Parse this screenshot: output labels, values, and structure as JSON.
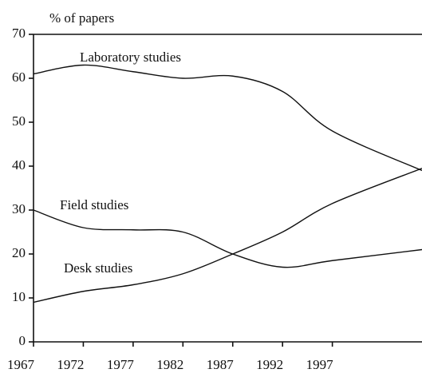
{
  "chart_data": {
    "type": "line",
    "ylabel": "% of papers",
    "x": [
      1967,
      1972,
      1977,
      1982,
      1987,
      1992,
      1997,
      2006
    ],
    "series": [
      {
        "name": "Laboratory studies",
        "color": "#111111",
        "values": [
          61,
          63,
          61.5,
          60,
          60.5,
          57,
          48,
          39
        ]
      },
      {
        "name": "Field studies",
        "color": "#111111",
        "values": [
          30,
          26,
          25.5,
          25,
          20,
          17,
          18.5,
          21
        ]
      },
      {
        "name": "Desk studies",
        "color": "#111111",
        "values": [
          9,
          11.5,
          13,
          15.5,
          20,
          25,
          31.5,
          39.5
        ]
      }
    ],
    "xlim": [
      1967,
      2006
    ],
    "xticks": [
      1967,
      1972,
      1977,
      1982,
      1987,
      1992,
      1997
    ],
    "ylim": [
      0,
      70
    ],
    "yticks": [
      0,
      10,
      20,
      30,
      40,
      50,
      60,
      70
    ],
    "grid": false,
    "legend": "inline"
  }
}
